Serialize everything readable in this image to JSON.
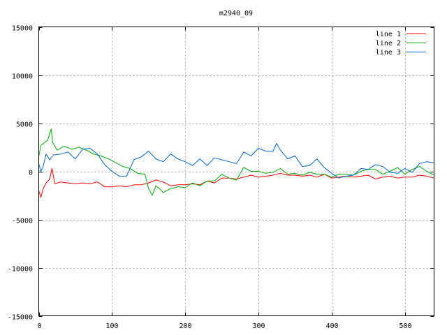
{
  "chart_data": {
    "type": "line",
    "title": "m2940_09",
    "xlabel": "",
    "ylabel": "",
    "xlim": [
      0,
      540
    ],
    "ylim": [
      -15000,
      15000
    ],
    "xticks": [
      0,
      100,
      200,
      300,
      400,
      500
    ],
    "yticks": [
      -15000,
      -10000,
      -5000,
      0,
      5000,
      10000,
      15000
    ],
    "grid": true,
    "legend_position": "top-right",
    "series": [
      {
        "name": "line 1",
        "color": "#ff0000",
        "x": [
          0,
          3,
          6,
          10,
          15,
          18,
          22,
          30,
          40,
          50,
          60,
          70,
          80,
          90,
          100,
          110,
          120,
          130,
          140,
          150,
          160,
          170,
          180,
          190,
          200,
          210,
          220,
          230,
          240,
          250,
          260,
          270,
          280,
          290,
          300,
          310,
          320,
          330,
          340,
          350,
          360,
          370,
          380,
          390,
          400,
          410,
          420,
          430,
          440,
          450,
          460,
          470,
          480,
          490,
          500,
          510,
          520,
          530,
          540
        ],
        "y": [
          -2000,
          -2700,
          -1800,
          -1200,
          -800,
          300,
          -1300,
          -1100,
          -1200,
          -1300,
          -1200,
          -1300,
          -1100,
          -1600,
          -1600,
          -1500,
          -1600,
          -1400,
          -1400,
          -1200,
          -900,
          -1100,
          -1500,
          -1400,
          -1400,
          -1300,
          -1400,
          -1000,
          -1200,
          -700,
          -700,
          -800,
          -600,
          -400,
          -600,
          -500,
          -400,
          -200,
          -400,
          -400,
          -500,
          -400,
          -600,
          -300,
          -700,
          -600,
          -500,
          -600,
          -500,
          -400,
          -800,
          -600,
          -500,
          -700,
          -600,
          -600,
          -400,
          -500,
          -700
        ]
      },
      {
        "name": "line 2",
        "color": "#00b000",
        "x": [
          0,
          3,
          8,
          12,
          17,
          19,
          25,
          35,
          45,
          55,
          65,
          75,
          85,
          95,
          105,
          115,
          125,
          135,
          145,
          150,
          155,
          160,
          165,
          170,
          180,
          190,
          200,
          210,
          220,
          230,
          240,
          250,
          260,
          270,
          280,
          290,
          300,
          310,
          320,
          330,
          340,
          350,
          360,
          370,
          380,
          390,
          400,
          410,
          420,
          430,
          440,
          450,
          460,
          470,
          480,
          490,
          500,
          510,
          520,
          530,
          540
        ],
        "y": [
          1500,
          2700,
          3000,
          3200,
          4400,
          3000,
          2200,
          2600,
          2300,
          2500,
          2200,
          1800,
          1600,
          1300,
          900,
          500,
          300,
          -200,
          -300,
          -1800,
          -2500,
          -1500,
          -1800,
          -2200,
          -1800,
          -1600,
          -1700,
          -1200,
          -1500,
          -1000,
          -1000,
          -300,
          -700,
          -900,
          400,
          0,
          0,
          -200,
          -100,
          300,
          -300,
          -200,
          -400,
          -100,
          -300,
          -300,
          -600,
          -300,
          -300,
          -400,
          0,
          200,
          200,
          -300,
          0,
          400,
          -300,
          200,
          500,
          0,
          -400
        ]
      },
      {
        "name": "line 3",
        "color": "#0066dd",
        "x": [
          0,
          3,
          6,
          10,
          15,
          20,
          30,
          40,
          50,
          60,
          70,
          80,
          90,
          100,
          110,
          120,
          130,
          140,
          150,
          160,
          170,
          180,
          190,
          200,
          210,
          220,
          230,
          240,
          250,
          260,
          270,
          280,
          290,
          300,
          310,
          320,
          325,
          330,
          340,
          350,
          360,
          370,
          380,
          390,
          400,
          410,
          420,
          430,
          440,
          450,
          460,
          470,
          480,
          490,
          500,
          510,
          520,
          530,
          540
        ],
        "y": [
          800,
          0,
          500,
          1800,
          1200,
          1700,
          1800,
          2000,
          1300,
          2300,
          2400,
          1800,
          700,
          0,
          -500,
          -500,
          1200,
          1500,
          2100,
          1300,
          1000,
          1800,
          1300,
          1000,
          600,
          1300,
          600,
          1400,
          1200,
          1000,
          800,
          2000,
          1600,
          2400,
          2100,
          2100,
          2900,
          2200,
          1300,
          1600,
          500,
          600,
          1300,
          400,
          -200,
          -700,
          -500,
          -400,
          300,
          200,
          700,
          500,
          -100,
          -200,
          300,
          -100,
          800,
          1000,
          900
        ]
      }
    ]
  }
}
